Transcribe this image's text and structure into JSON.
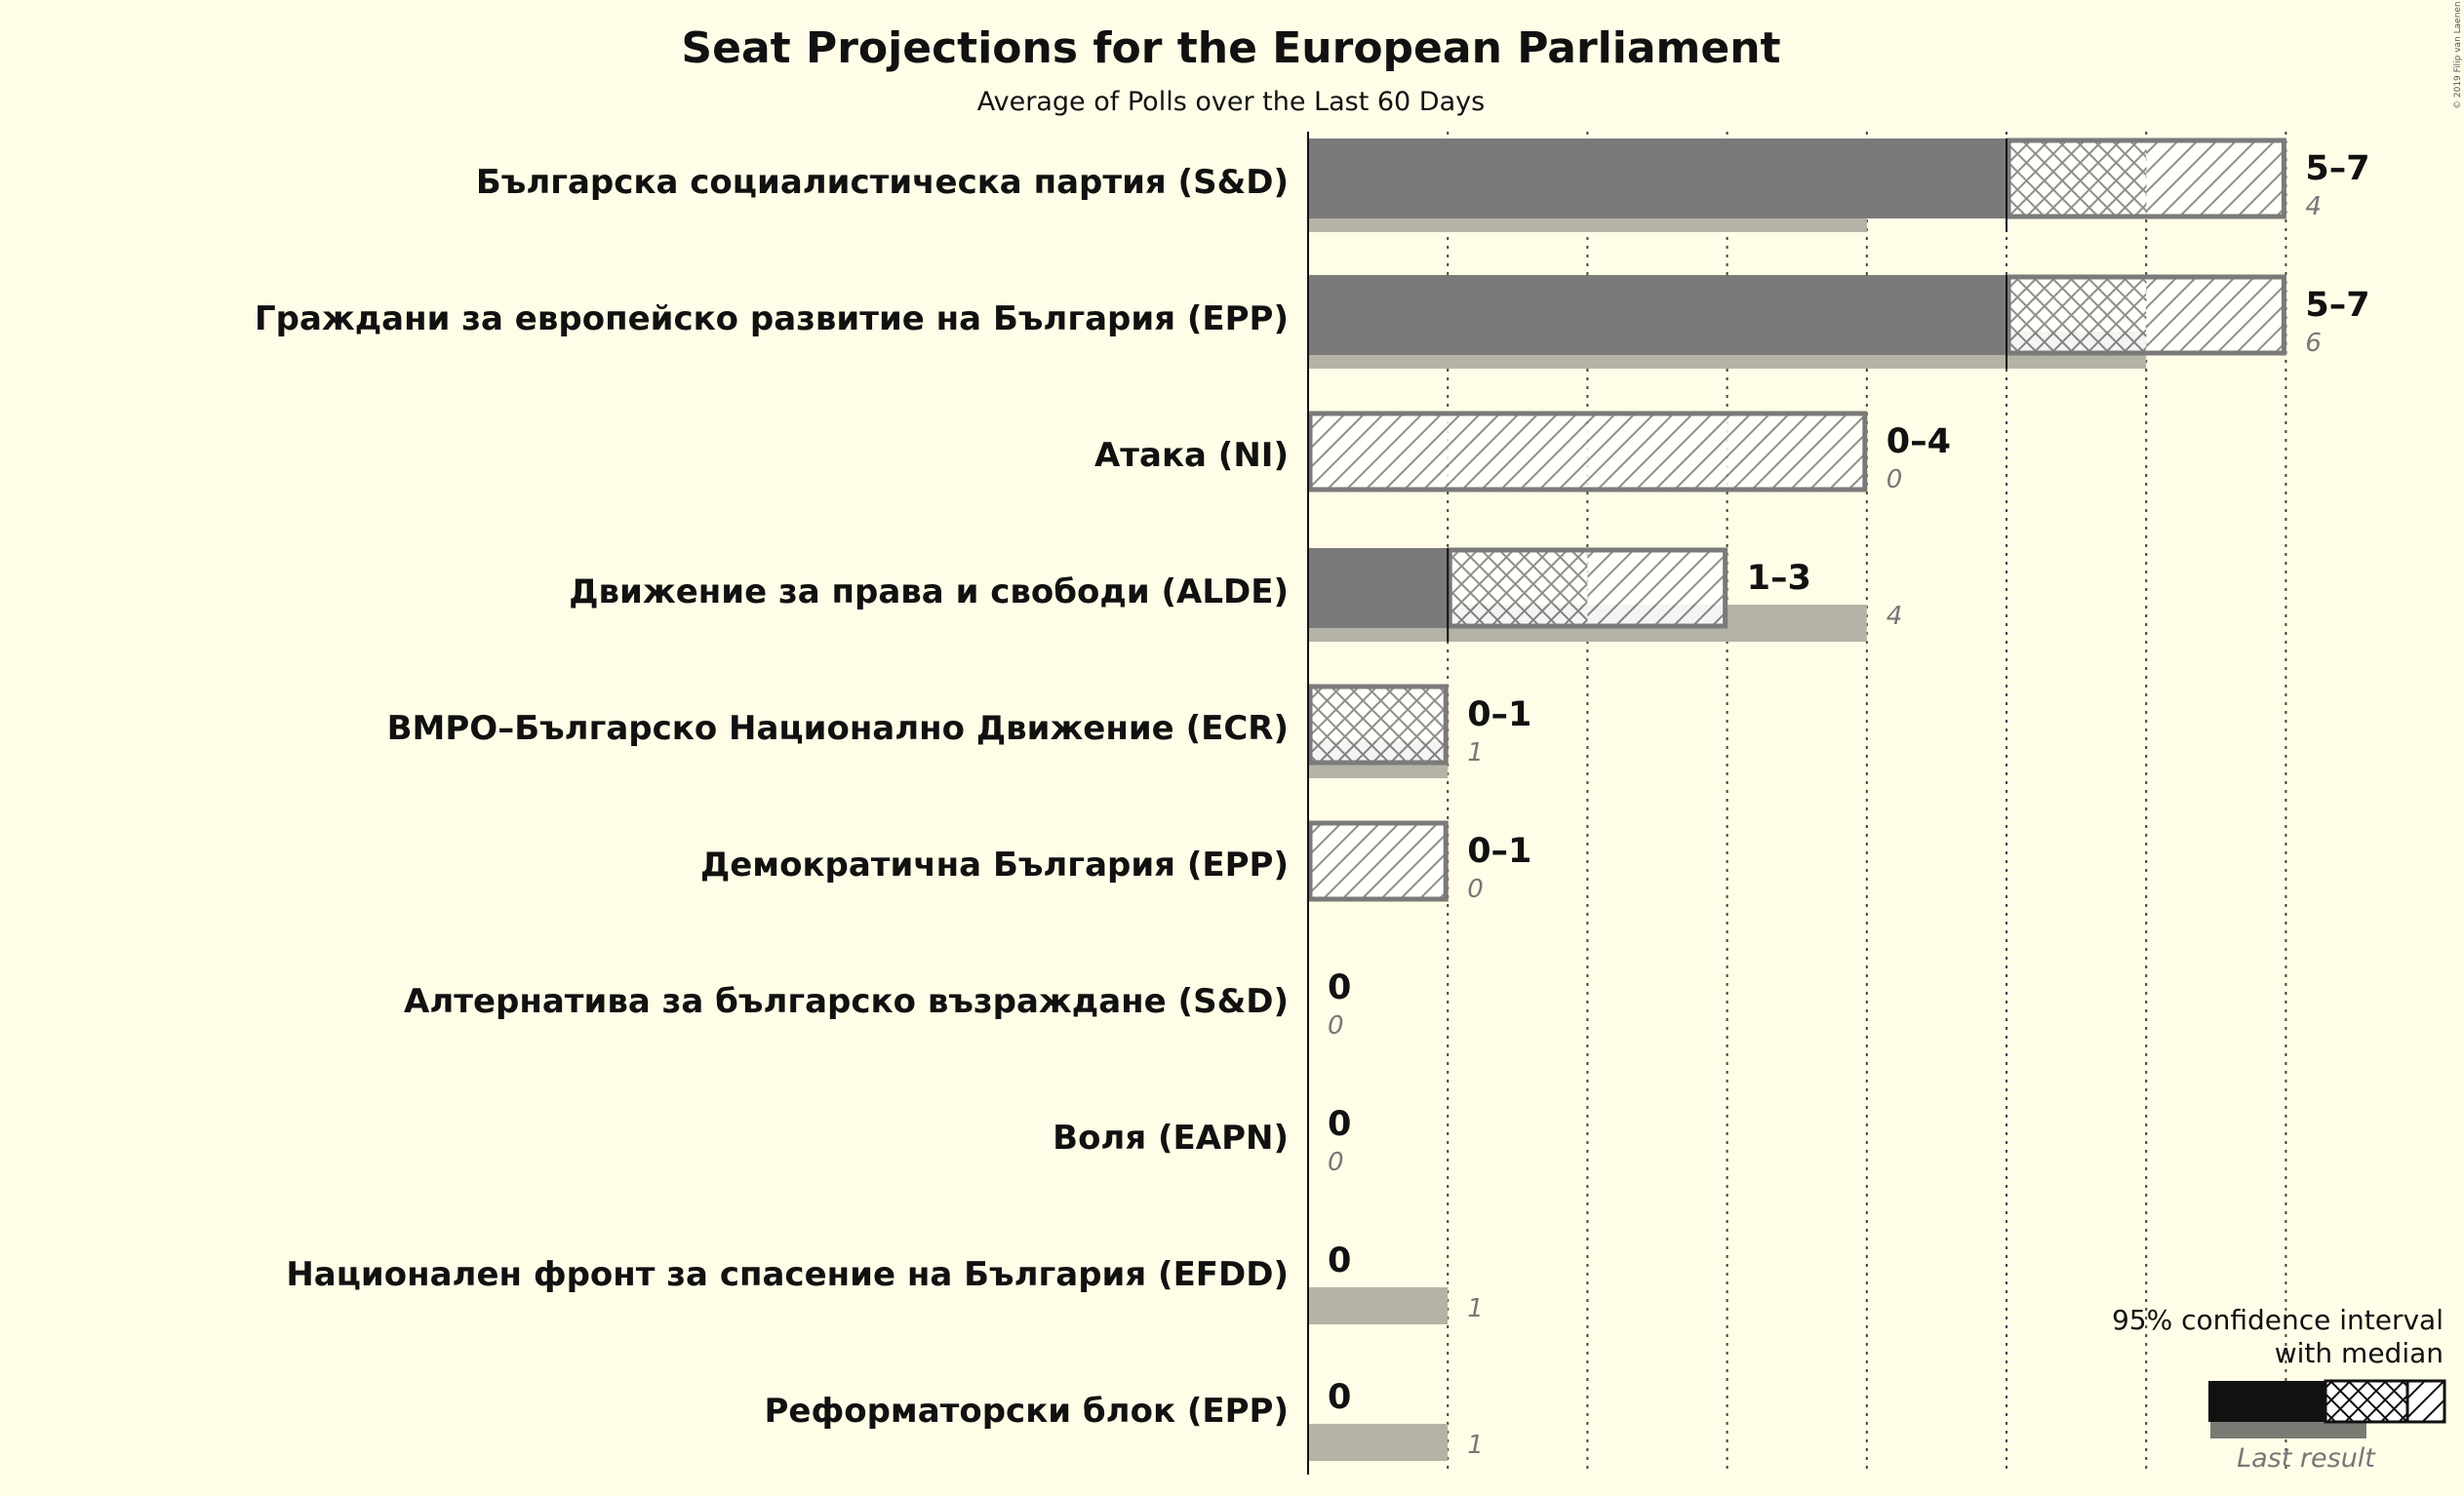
{
  "title": "Seat Projections for the European Parliament",
  "subtitle": "Average of Polls over the Last 60 Days",
  "copyright": "© 2019 Filip van Laenen",
  "legend": {
    "line1": "95% confidence interval",
    "line2": "with median",
    "last_result": "Last result"
  },
  "colors": {
    "background": "#fffde7",
    "bar": "#7a7a7a",
    "last_result": "#b5b3a6",
    "border": "#7a7a7a",
    "legend_solid": "#111111"
  },
  "chart_data": {
    "type": "bar",
    "orientation": "horizontal",
    "x_grid_values": [
      1,
      2,
      3,
      4,
      5,
      6,
      7
    ],
    "xlim": [
      0,
      7
    ],
    "parties": [
      {
        "name": "Българска социалистическа партия (S&D)",
        "low": 5,
        "median": 6,
        "high": 7,
        "range_label": "5–7",
        "last": 4,
        "last_label": "4"
      },
      {
        "name": "Граждани за европейско развитие на България (EPP)",
        "low": 5,
        "median": 6,
        "high": 7,
        "range_label": "5–7",
        "last": 6,
        "last_label": "6"
      },
      {
        "name": "Атака (NI)",
        "low": 0,
        "median": 0,
        "high": 4,
        "range_label": "0–4",
        "last": 0,
        "last_label": "0"
      },
      {
        "name": "Движение за права и свободи (ALDE)",
        "low": 1,
        "median": 2,
        "high": 3,
        "range_label": "1–3",
        "last": 4,
        "last_label": "4"
      },
      {
        "name": "ВМРО–Българско Национално Движение (ECR)",
        "low": 0,
        "median": 1,
        "high": 1,
        "range_label": "0–1",
        "last": 1,
        "last_label": "1"
      },
      {
        "name": "Демократична България (EPP)",
        "low": 0,
        "median": 0,
        "high": 1,
        "range_label": "0–1",
        "last": 0,
        "last_label": "0"
      },
      {
        "name": "Алтернатива за българско възраждане (S&D)",
        "low": 0,
        "median": 0,
        "high": 0,
        "range_label": "0",
        "last": 0,
        "last_label": "0"
      },
      {
        "name": "Воля (EAPN)",
        "low": 0,
        "median": 0,
        "high": 0,
        "range_label": "0",
        "last": 0,
        "last_label": "0"
      },
      {
        "name": "Национален фронт за спасение на България (EFDD)",
        "low": 0,
        "median": 0,
        "high": 0,
        "range_label": "0",
        "last": 1,
        "last_label": "1"
      },
      {
        "name": "Реформаторски блок (EPP)",
        "low": 0,
        "median": 0,
        "high": 0,
        "range_label": "0",
        "last": 1,
        "last_label": "1"
      }
    ]
  }
}
